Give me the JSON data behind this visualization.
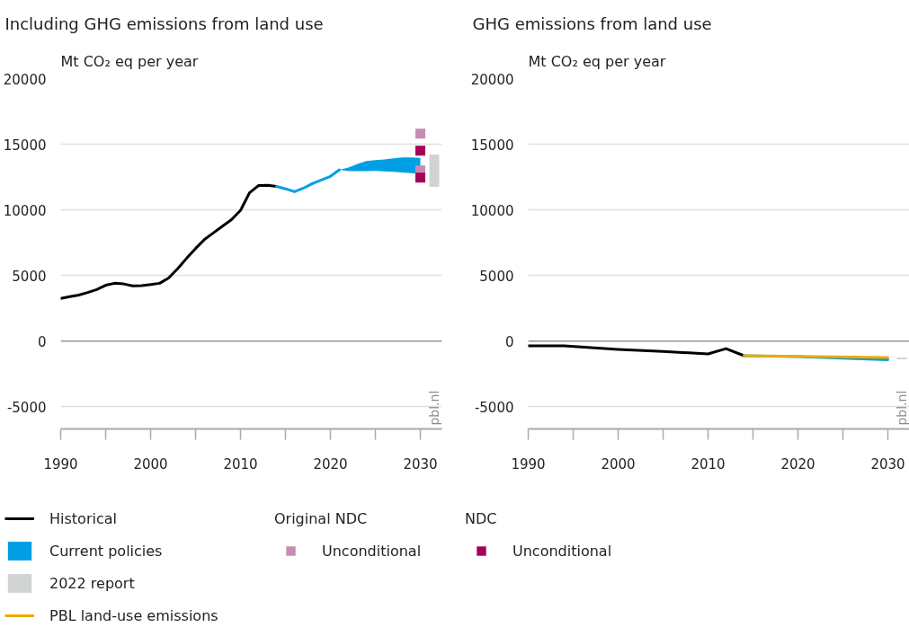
{
  "chart_data": [
    {
      "type": "line",
      "title": "Including GHG emissions from land use",
      "ylabel": "Mt CO₂ eq per year",
      "xlim": [
        1990,
        2032.4
      ],
      "xticks": [
        1990,
        {
          "value": 1995,
          "label": null
        },
        2000,
        {
          "value": 2005,
          "label": null
        },
        2010,
        {
          "value": 2015,
          "label": null
        },
        2020,
        {
          "value": 2025,
          "label": null
        },
        2030
      ],
      "ylim": [
        -6700,
        20000
      ],
      "yticks": [
        -5000,
        0,
        5000,
        10000,
        15000,
        20000
      ],
      "grid": "y",
      "legend": "bottom",
      "ref_lines": [
        {
          "axis": "y",
          "value": 0,
          "color": "#9a9a9a"
        }
      ],
      "annotations": [
        "Original NDC",
        "NDC",
        "pbl.nl"
      ],
      "series": [
        {
          "name": "Historical",
          "color": "#000000",
          "x": [
            1990,
            1991,
            1992,
            1993,
            1994,
            1995,
            1996,
            1997,
            1998,
            1999,
            2000,
            2001,
            2002,
            2003,
            2004,
            2005,
            2006,
            2007,
            2008,
            2009,
            2010,
            2011,
            2012,
            2013,
            2014
          ],
          "values": [
            3250,
            3380,
            3500,
            3700,
            3920,
            4250,
            4400,
            4350,
            4200,
            4220,
            4300,
            4400,
            4800,
            5500,
            6300,
            7050,
            7750,
            8250,
            8750,
            9250,
            9950,
            11300,
            11850,
            11870,
            11780
          ]
        },
        {
          "name": "Current policies",
          "color": "#009fe3",
          "x": [
            2014,
            2015,
            2016,
            2017,
            2018,
            2019,
            2020,
            2021,
            2022,
            2023,
            2024,
            2025,
            2026,
            2027,
            2028,
            2029,
            2030
          ],
          "values": [
            11780,
            11600,
            11380,
            11650,
            12000,
            12280,
            12550,
            13050,
            null,
            null,
            null,
            null,
            null,
            null,
            null,
            null,
            null
          ],
          "lower": [
            null,
            null,
            null,
            null,
            null,
            null,
            null,
            13050,
            12950,
            12950,
            12950,
            12960,
            12930,
            12900,
            12850,
            12800,
            12750
          ],
          "upper": [
            null,
            null,
            null,
            null,
            null,
            null,
            null,
            13050,
            13220,
            13500,
            13720,
            13790,
            13830,
            13930,
            14000,
            14000,
            13950
          ]
        },
        {
          "name": "2022 report",
          "type": "bar",
          "color": "#d1d3d2",
          "x": [
            2031.55
          ],
          "base": [
            11750
          ],
          "values": [
            2450
          ]
        },
        {
          "name": "Unconditional",
          "type": "scatter",
          "marker": "square",
          "color": "#c68cb1",
          "x": [
            2030,
            2030
          ],
          "values": [
            15800,
            13000
          ]
        },
        {
          "name": "Unconditional",
          "type": "scatter",
          "marker": "square",
          "color": "#a3005b",
          "x": [
            2030,
            2030
          ],
          "values": [
            14500,
            12450
          ]
        }
      ]
    },
    {
      "type": "line",
      "title": "GHG emissions from land use",
      "ylabel": "Mt CO₂ eq per year",
      "xlim": [
        1990,
        2032.4
      ],
      "xticks": [
        1990,
        {
          "value": 1995,
          "label": null
        },
        2000,
        {
          "value": 2005,
          "label": null
        },
        2010,
        {
          "value": 2015,
          "label": null
        },
        2020,
        {
          "value": 2025,
          "label": null
        },
        2030
      ],
      "ylim": [
        -6700,
        20000
      ],
      "yticks": [
        -5000,
        0,
        5000,
        10000,
        15000,
        20000
      ],
      "grid": "y",
      "legend": "bottom",
      "ref_lines": [
        {
          "axis": "y",
          "value": 0,
          "color": "#9a9a9a"
        }
      ],
      "annotations": [
        "pbl.nl"
      ],
      "series": [
        {
          "color": "#000000",
          "x": [
            1990,
            1994,
            2000,
            2005,
            2010,
            2012,
            2014
          ],
          "values": [
            -370,
            -370,
            -640,
            -790,
            -980,
            -580,
            -1120
          ]
        },
        {
          "color": "#009fe3",
          "x": [
            2014,
            2020,
            2025,
            2030
          ],
          "values": [
            -1120,
            -1190,
            -1310,
            -1420
          ]
        },
        {
          "type": "bar",
          "color": "#d1d3d2",
          "x": [
            2031.55
          ],
          "base": [
            -1390
          ],
          "values": [
            130
          ]
        },
        {
          "name": "PBL land-use emissions",
          "color": "#eea900",
          "x": [
            2014,
            2020,
            2030
          ],
          "values": [
            -1120,
            -1170,
            -1260
          ]
        }
      ]
    }
  ]
}
